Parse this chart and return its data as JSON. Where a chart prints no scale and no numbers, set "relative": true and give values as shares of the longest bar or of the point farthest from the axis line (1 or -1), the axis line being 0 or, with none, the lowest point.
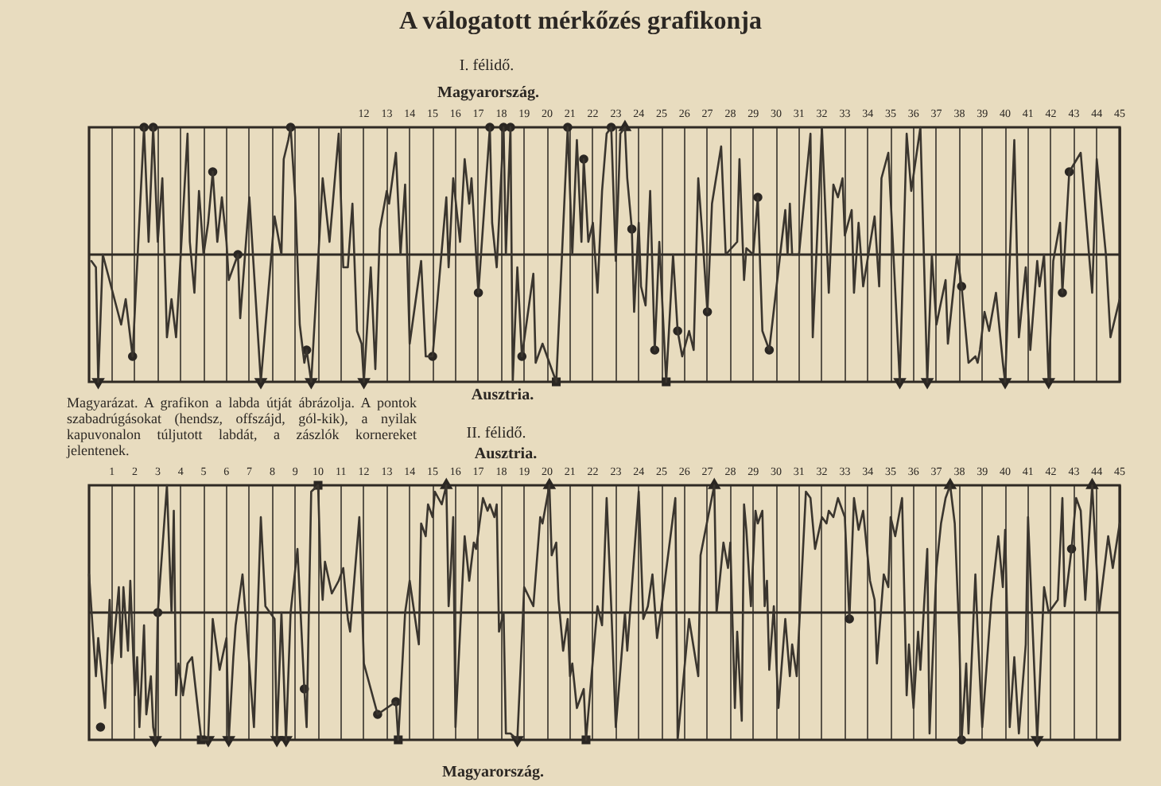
{
  "chart_data": [
    {
      "type": "line",
      "title": "A válogatott mérkőzés grafikonja",
      "subtitle": "I. félidő.",
      "annotations": [
        "Magyarország.",
        "Ausztria.",
        "Magyarázat. A grafikon a labda útját ábrázolja. A pontok szabadrúgásokat (hendsz, offszájd, gól-kik), a nyilak kapuvonalon túljutott labdát, a zászlók kornereket jelentenek."
      ],
      "relative": true,
      "xlim": [
        0,
        45
      ],
      "xticks": [
        {
          "value": 1,
          "label": null
        },
        {
          "value": 2,
          "label": null
        },
        {
          "value": 3,
          "label": null
        },
        {
          "value": 4,
          "label": null
        },
        {
          "value": 5,
          "label": null
        },
        {
          "value": 6,
          "label": null
        },
        {
          "value": 7,
          "label": null
        },
        {
          "value": 8,
          "label": null
        },
        {
          "value": 9,
          "label": null
        },
        {
          "value": 10,
          "label": null
        },
        {
          "value": 11,
          "label": null
        },
        12,
        13,
        14,
        15,
        16,
        17,
        18,
        19,
        20,
        21,
        22,
        23,
        24,
        25,
        26,
        27,
        28,
        29,
        30,
        31,
        32,
        33,
        34,
        35,
        36,
        37,
        38,
        39,
        40,
        41,
        42,
        43,
        44,
        45
      ],
      "tick_labels": "x",
      "grid": "x",
      "series": [
        {
          "color": "#3a352e",
          "marker": "none",
          "x": [
            0.1,
            0.3,
            0.4,
            0.6,
            1.4,
            1.6,
            1.9,
            2.4,
            2.6,
            2.8,
            3.0,
            3.2,
            3.4,
            3.6,
            3.8,
            4.3,
            4.4,
            4.6,
            4.8,
            5.0,
            5.2,
            5.4,
            5.6,
            5.8,
            6.0,
            6.1,
            6.5,
            6.6,
            7.0,
            7.5,
            8.1,
            8.4,
            8.5,
            8.7,
            8.8,
            9.0,
            9.2,
            9.4,
            9.5,
            9.7,
            10.0,
            10.2,
            10.5,
            10.9,
            11.1,
            11.3,
            11.5,
            11.7,
            11.9,
            12.0,
            12.3,
            12.5,
            12.7,
            13.0,
            13.1,
            13.4,
            13.6,
            13.8,
            14.0,
            14.5,
            14.7,
            15.0,
            15.6,
            15.7,
            15.9,
            16.2,
            16.4,
            16.6,
            16.7,
            17.0,
            17.5,
            17.6,
            17.8,
            18.1,
            18.2,
            18.4,
            18.5,
            18.7,
            18.9,
            19.4,
            19.5,
            19.8,
            20.4,
            20.9,
            21.1,
            21.3,
            21.5,
            21.6,
            21.8,
            22.0,
            22.2,
            22.4,
            22.6,
            22.8,
            23.0,
            23.2,
            23.4,
            23.5,
            23.7,
            23.8,
            24.0,
            24.1,
            24.3,
            24.5,
            24.7,
            24.9,
            25.2,
            25.5,
            25.7,
            25.9,
            26.2,
            26.4,
            26.6,
            26.8,
            27.0,
            27.2,
            27.6,
            27.8,
            28.3,
            28.4,
            28.6,
            28.7,
            29.0,
            29.2,
            29.4,
            29.7,
            30.4,
            30.5,
            30.6,
            30.7,
            31.0,
            31.5,
            31.6,
            32.0,
            32.3,
            32.5,
            32.7,
            32.9,
            33.0,
            33.3,
            33.4,
            33.6,
            33.8,
            34.3,
            34.5,
            34.6,
            34.9,
            35.4,
            35.7,
            35.9,
            36.3,
            36.6,
            36.8,
            37.0,
            37.4,
            37.5,
            37.9,
            38.1,
            38.4,
            38.7,
            38.8,
            38.9,
            39.1,
            39.3,
            39.6,
            39.9,
            40.0,
            40.4,
            40.6,
            40.9,
            41.1,
            41.4,
            41.5,
            41.7,
            41.9,
            42.1,
            42.4,
            42.5,
            42.8,
            43.3,
            43.8,
            44.0,
            44.4,
            44.6,
            45.0
          ],
          "values": [
            -0.05,
            -0.1,
            -1,
            0,
            -0.55,
            -0.35,
            -0.8,
            1,
            0.1,
            1,
            0.1,
            0.6,
            -0.65,
            -0.35,
            -0.65,
            0.95,
            0.1,
            -0.3,
            0.5,
            0,
            0.25,
            0.65,
            0.1,
            0.45,
            0.1,
            -0.2,
            0,
            -0.5,
            0.45,
            -1,
            0.3,
            0,
            0.75,
            0.9,
            1,
            0.45,
            -0.55,
            -0.85,
            -0.75,
            -1,
            -0.05,
            0.6,
            0.1,
            0.95,
            -0.1,
            -0.1,
            0.4,
            -0.6,
            -0.7,
            -1,
            -0.1,
            -0.9,
            0.2,
            0.5,
            0.4,
            0.8,
            0,
            0.55,
            -0.7,
            -0.05,
            -0.8,
            -0.8,
            0.45,
            -0.1,
            0.6,
            0.1,
            0.75,
            0.4,
            0.6,
            -0.3,
            1,
            0.25,
            -0.1,
            1,
            0,
            1,
            -1,
            -0.1,
            -0.8,
            -0.15,
            -0.85,
            -0.7,
            -1,
            1,
            0,
            0.9,
            0.1,
            0.75,
            0.1,
            0.25,
            -0.3,
            0.5,
            0.95,
            1,
            -0.05,
            0.95,
            1,
            0.6,
            0.2,
            -0.45,
            0.25,
            -0.25,
            -0.4,
            0.5,
            -0.75,
            0.1,
            -1,
            0,
            -0.6,
            -0.8,
            -0.6,
            -0.75,
            0.6,
            0.1,
            -0.45,
            0.4,
            0.85,
            0,
            0.1,
            0.75,
            -0.2,
            0.05,
            0,
            0.45,
            -0.6,
            -0.75,
            0.35,
            0,
            0.4,
            0,
            0,
            0.95,
            -0.65,
            1,
            -0.3,
            0.55,
            0.45,
            0.6,
            0.15,
            0.35,
            -0.3,
            0.25,
            -0.25,
            0.3,
            -0.25,
            0.6,
            0.8,
            -1,
            0.95,
            0.5,
            1,
            -1,
            0,
            -0.55,
            -0.2,
            -0.7,
            0,
            -0.25,
            -0.85,
            -0.8,
            -0.85,
            -0.75,
            -0.45,
            -0.6,
            -0.3,
            -0.85,
            -1,
            0.9,
            -0.65,
            -0.1,
            -0.75,
            -0.05,
            -0.25,
            0,
            -1,
            -0.05,
            0.25,
            -0.3,
            0.65,
            0.8,
            -0.3,
            0.75,
            0,
            -0.65,
            -0.35
          ]
        },
        {
          "type": "scatter",
          "color": "#2b2723",
          "marker": "circle",
          "x": [
            1.9,
            2.4,
            2.8,
            5.4,
            6.5,
            8.8,
            9.5,
            15.0,
            17.0,
            17.5,
            18.1,
            18.4,
            18.9,
            20.9,
            21.6,
            22.8,
            23.7,
            24.7,
            25.7,
            27.0,
            29.2,
            29.7,
            38.1,
            42.5,
            42.8
          ],
          "values": [
            -0.8,
            1,
            1,
            0.65,
            0,
            1,
            -0.75,
            -0.8,
            -0.3,
            1,
            1,
            1,
            -0.8,
            1,
            0.75,
            1,
            0.2,
            -0.75,
            -0.6,
            -0.45,
            0.45,
            -0.75,
            -0.25,
            -0.3,
            0.65
          ]
        },
        {
          "type": "scatter",
          "color": "#2b2723",
          "marker": "triangle",
          "x": [
            0.4,
            7.5,
            9.7,
            12.0,
            23.4,
            35.4,
            36.6,
            40.0,
            41.9
          ],
          "values": [
            -1,
            -1,
            -1,
            -1,
            1,
            -1,
            -1,
            -1,
            -1
          ]
        },
        {
          "type": "scatter",
          "color": "#2b2723",
          "marker": "square",
          "x": [
            20.4,
            25.2
          ],
          "values": [
            -1,
            -1
          ]
        }
      ]
    },
    {
      "type": "line",
      "subtitle": "II. félidő.",
      "annotations": [
        "Ausztria.",
        "Magyarország."
      ],
      "relative": true,
      "xlim": [
        0,
        45
      ],
      "xticks": [
        1,
        2,
        3,
        4,
        5,
        6,
        7,
        8,
        9,
        10,
        11,
        12,
        13,
        14,
        15,
        16,
        17,
        18,
        19,
        20,
        21,
        22,
        23,
        24,
        25,
        26,
        27,
        28,
        29,
        30,
        31,
        32,
        33,
        34,
        35,
        36,
        37,
        38,
        39,
        40,
        41,
        42,
        43,
        44,
        45
      ],
      "tick_labels": "x",
      "grid": "x",
      "series": [
        {
          "color": "#3a352e",
          "marker": "none",
          "x": [
            0,
            0.3,
            0.4,
            0.7,
            0.9,
            1.0,
            1.3,
            1.4,
            1.5,
            1.7,
            1.8,
            2.0,
            2.1,
            2.2,
            2.4,
            2.5,
            2.7,
            2.8,
            2.9,
            3.0,
            3.4,
            3.6,
            3.7,
            3.8,
            3.9,
            4.1,
            4.3,
            4.5,
            4.9,
            5.2,
            5.4,
            5.7,
            6.0,
            6.1,
            6.3,
            6.4,
            6.7,
            7.2,
            7.5,
            7.7,
            8.1,
            8.2,
            8.4,
            8.6,
            8.8,
            9.1,
            9.4,
            9.5,
            9.7,
            10.0,
            10.1,
            10.2,
            10.3,
            10.6,
            10.9,
            11.1,
            11.3,
            11.4,
            11.8,
            12.0,
            12.6,
            13.4,
            13.5,
            13.8,
            14.0,
            14.4,
            14.5,
            14.7,
            14.8,
            15.0,
            15.1,
            15.4,
            15.6,
            15.7,
            15.8,
            15.9,
            16.0,
            16.4,
            16.6,
            16.8,
            16.9,
            17.2,
            17.4,
            17.5,
            17.7,
            17.8,
            17.9,
            18.1,
            18.2,
            18.4,
            18.7,
            19.0,
            19.4,
            19.7,
            19.8,
            20.1,
            20.2,
            20.4,
            20.5,
            20.7,
            20.9,
            21.0,
            21.1,
            21.3,
            21.6,
            21.7,
            22.2,
            22.4,
            22.6,
            22.8,
            23.0,
            23.4,
            23.5,
            24.0,
            24.2,
            24.4,
            24.6,
            24.8,
            25.0,
            25.6,
            25.7,
            26.2,
            26.6,
            26.7,
            27.3,
            27.4,
            27.7,
            27.9,
            28.0,
            28.2,
            28.3,
            28.5,
            28.6,
            28.7,
            28.9,
            29.1,
            29.2,
            29.4,
            29.5,
            29.6,
            29.7,
            29.9,
            30.1,
            30.4,
            30.6,
            30.7,
            30.9,
            31.3,
            31.5,
            31.7,
            32.0,
            32.2,
            32.3,
            32.5,
            32.7,
            33.0,
            33.2,
            33.4,
            33.6,
            33.8,
            34.1,
            34.3,
            34.4,
            34.7,
            34.9,
            35.0,
            35.2,
            35.5,
            35.7,
            35.8,
            36.0,
            36.2,
            36.3,
            36.6,
            36.7,
            37.0,
            37.2,
            37.4,
            37.6,
            37.8,
            38.0,
            38.1,
            38.3,
            38.4,
            38.7,
            38.8,
            39.0,
            39.4,
            39.7,
            39.9,
            40.0,
            40.2,
            40.4,
            40.6,
            40.9,
            41.0,
            41.4,
            41.7,
            41.9,
            42.3,
            42.5,
            42.6,
            42.9,
            43.1,
            43.3,
            43.5,
            43.8,
            44.1,
            44.5,
            44.7,
            45.0
          ],
          "values": [
            0.3,
            -0.5,
            -0.2,
            -0.75,
            0.1,
            -0.4,
            0.2,
            -0.35,
            0.2,
            -0.3,
            0.25,
            -0.65,
            -0.35,
            -0.9,
            -0.1,
            -0.8,
            -0.5,
            -0.9,
            -1,
            0,
            1,
            0,
            0.8,
            -0.65,
            -0.4,
            -0.65,
            -0.4,
            -0.35,
            -1,
            -1,
            -0.05,
            -0.45,
            -0.2,
            -1,
            -0.35,
            -0.1,
            0.3,
            -0.9,
            0.75,
            0.05,
            -0.05,
            -1,
            0,
            -1,
            0,
            0.5,
            -0.6,
            -0.9,
            0.95,
            1,
            0.4,
            0.1,
            0.4,
            0.15,
            0.25,
            0.35,
            -0.05,
            -0.15,
            0.75,
            -0.4,
            -0.8,
            -0.7,
            -1,
            0,
            0.25,
            -0.25,
            0.7,
            0.6,
            0.85,
            0.75,
            0.95,
            0.85,
            1,
            0.05,
            0.35,
            0.75,
            -0.9,
            0.6,
            0.25,
            0.55,
            0.5,
            0.9,
            0.8,
            0.85,
            0.75,
            0.85,
            -0.15,
            0,
            -0.95,
            -0.95,
            -1,
            0.2,
            0.05,
            0.75,
            0.7,
            1,
            0.45,
            0.55,
            0.1,
            -0.3,
            -0.05,
            -0.5,
            -0.4,
            -0.75,
            -0.6,
            -1,
            0.05,
            -0.1,
            0.9,
            0.05,
            -0.9,
            0,
            -0.3,
            0.95,
            -0.05,
            0.05,
            0.3,
            -0.2,
            0.05,
            0.9,
            -1,
            -0.05,
            -0.5,
            0.45,
            1,
            0,
            0.55,
            0.35,
            0.55,
            -0.75,
            -0.15,
            -0.85,
            0.85,
            0.65,
            0.05,
            0.8,
            0.7,
            0.8,
            0.05,
            0.25,
            -0.45,
            0.05,
            -0.75,
            -0.05,
            -0.5,
            -0.25,
            -0.5,
            0.95,
            0.9,
            0.5,
            0.75,
            0.7,
            0.8,
            0.75,
            0.9,
            0.75,
            -0.05,
            0.9,
            0.65,
            0.8,
            0.25,
            0.1,
            -0.4,
            0.3,
            0.2,
            0.75,
            0.6,
            0.9,
            -0.65,
            -0.25,
            -0.75,
            -0.15,
            -0.45,
            0.5,
            -0.95,
            0.35,
            0.7,
            0.9,
            1,
            0.7,
            -0.2,
            -1,
            -0.4,
            -0.95,
            0.3,
            -0.15,
            -0.9,
            0.1,
            0.6,
            0.2,
            0.65,
            -0.9,
            -0.35,
            -0.95,
            -0.25,
            0.75,
            -1,
            0.2,
            0,
            0.1,
            0.9,
            0.05,
            0.5,
            0.9,
            0.8,
            0.1,
            1,
            0,
            0.6,
            0.35,
            0.7
          ]
        },
        {
          "type": "scatter",
          "color": "#2b2723",
          "marker": "circle",
          "x": [
            0.5,
            3.0,
            9.4,
            12.6,
            13.4,
            33.2,
            38.1,
            42.9
          ],
          "values": [
            -0.9,
            0,
            -0.6,
            -0.8,
            -0.7,
            -0.05,
            -1,
            0.5
          ]
        },
        {
          "type": "scatter",
          "color": "#2b2723",
          "marker": "triangle",
          "x": [
            2.9,
            5.2,
            6.1,
            8.2,
            8.6,
            15.6,
            18.7,
            20.1,
            27.3,
            37.6,
            41.4,
            43.8
          ],
          "values": [
            -1,
            -1,
            -1,
            -1,
            -1,
            1,
            -1,
            1,
            1,
            1,
            -1,
            1
          ]
        },
        {
          "type": "scatter",
          "color": "#2b2723",
          "marker": "square",
          "x": [
            4.9,
            10.0,
            13.5,
            21.7
          ],
          "values": [
            -1,
            1,
            -1,
            -1
          ]
        }
      ]
    }
  ]
}
